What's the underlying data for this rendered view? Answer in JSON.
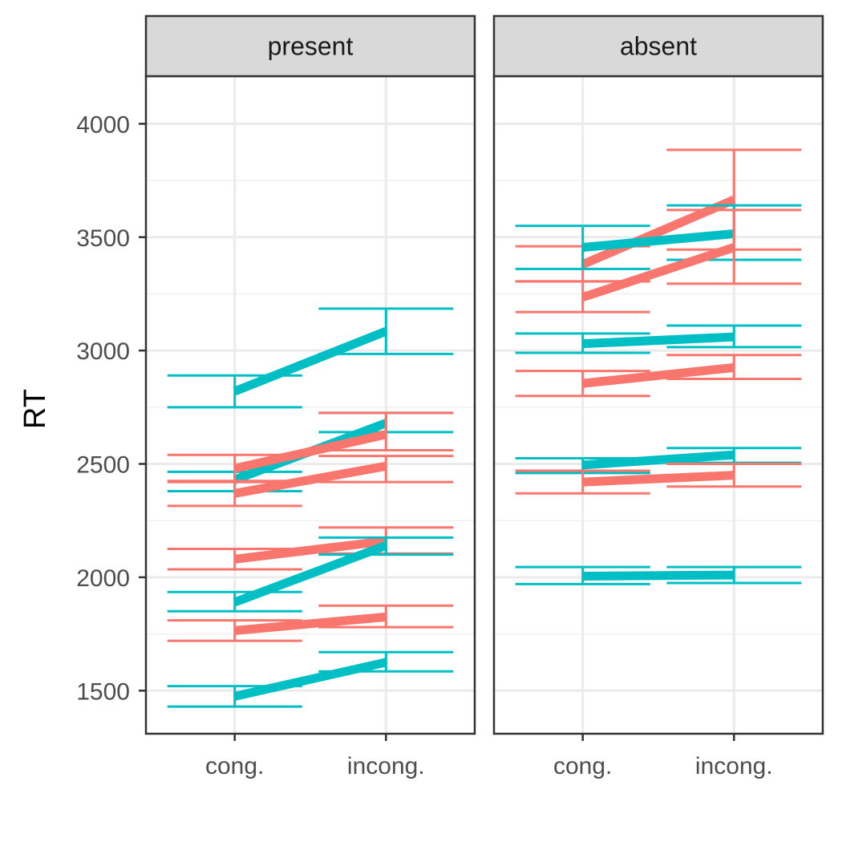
{
  "chart_data": {
    "type": "line",
    "ylabel": "RT",
    "xlabel": "",
    "ylim": [
      1310,
      4210
    ],
    "yticks": [
      1500,
      2000,
      2500,
      3000,
      3500,
      4000
    ],
    "ytick_labels": [
      "1500",
      "2000",
      "2500",
      "3000",
      "3500",
      "4000"
    ],
    "categories": [
      "cong.",
      "incong."
    ],
    "grid": true,
    "legend": "none",
    "colors": {
      "red": "#F8766D",
      "teal": "#00BFC4"
    },
    "panels": [
      {
        "name": "present",
        "series": [
          {
            "color": "teal",
            "values": [
              2820,
              3085
            ],
            "lower": [
              2750,
              2985
            ],
            "upper": [
              2890,
              3185
            ]
          },
          {
            "color": "teal",
            "values": [
              2430,
              2680
            ],
            "lower": [
              2380,
              2640
            ],
            "upper": [
              2465,
              2725
            ]
          },
          {
            "color": "red",
            "values": [
              2480,
              2630
            ],
            "lower": [
              2420,
              2560
            ],
            "upper": [
              2540,
              2725
            ]
          },
          {
            "color": "red",
            "values": [
              2370,
              2490
            ],
            "lower": [
              2315,
              2420
            ],
            "upper": [
              2425,
              2535
            ]
          },
          {
            "color": "red",
            "values": [
              2080,
              2160
            ],
            "lower": [
              2035,
              2105
            ],
            "upper": [
              2125,
              2220
            ]
          },
          {
            "color": "teal",
            "values": [
              1890,
              2140
            ],
            "lower": [
              1850,
              2100
            ],
            "upper": [
              1935,
              2175
            ]
          },
          {
            "color": "red",
            "values": [
              1765,
              1825
            ],
            "lower": [
              1720,
              1780
            ],
            "upper": [
              1810,
              1875
            ]
          },
          {
            "color": "teal",
            "values": [
              1475,
              1625
            ],
            "lower": [
              1430,
              1585
            ],
            "upper": [
              1520,
              1670
            ]
          }
        ]
      },
      {
        "name": "absent",
        "series": [
          {
            "color": "red",
            "values": [
              3380,
              3665
            ],
            "lower": [
              3305,
              3445
            ],
            "upper": [
              3460,
              3885
            ]
          },
          {
            "color": "teal",
            "values": [
              3455,
              3515
            ],
            "lower": [
              3360,
              3400
            ],
            "upper": [
              3550,
              3640
            ]
          },
          {
            "color": "red",
            "values": [
              3235,
              3455
            ],
            "lower": [
              3170,
              3295
            ],
            "upper": [
              3305,
              3620
            ]
          },
          {
            "color": "teal",
            "values": [
              3030,
              3060
            ],
            "lower": [
              2990,
              3015
            ],
            "upper": [
              3075,
              3110
            ]
          },
          {
            "color": "red",
            "values": [
              2855,
              2925
            ],
            "lower": [
              2800,
              2875
            ],
            "upper": [
              2910,
              2980
            ]
          },
          {
            "color": "teal",
            "values": [
              2495,
              2540
            ],
            "lower": [
              2460,
              2505
            ],
            "upper": [
              2525,
              2570
            ]
          },
          {
            "color": "red",
            "values": [
              2420,
              2450
            ],
            "lower": [
              2370,
              2400
            ],
            "upper": [
              2470,
              2500
            ]
          },
          {
            "color": "teal",
            "values": [
              2005,
              2010
            ],
            "lower": [
              1970,
              1975
            ],
            "upper": [
              2045,
              2045
            ]
          }
        ]
      }
    ]
  }
}
